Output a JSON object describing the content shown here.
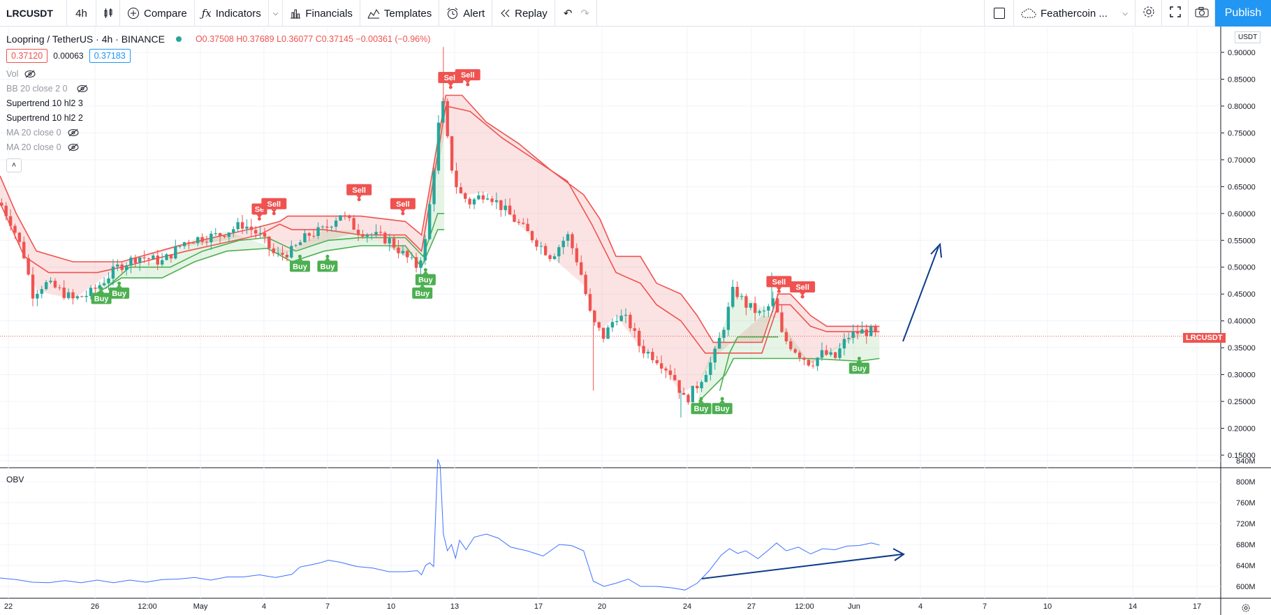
{
  "toolbar": {
    "symbol": "LRCUSDT",
    "interval": "4h",
    "compare": "Compare",
    "indicators": "Indicators",
    "financials": "Financials",
    "templates": "Templates",
    "alert": "Alert",
    "replay": "Replay",
    "layout_name": "Feathercoin ...",
    "publish": "Publish"
  },
  "legend": {
    "title": "Loopring / TetherUS · 4h · BINANCE",
    "open": "O0.37508",
    "high": "H0.37689",
    "low": "L0.36077",
    "close": "C0.37145",
    "change": "−0.00361 (−0.96%)",
    "bid": "0.37120",
    "spread": "0.00063",
    "ask": "0.37183",
    "indicators": [
      "Vol",
      "BB 20 close 2 0",
      "Supertrend 10 hl2 3",
      "Supertrend 10 hl2 2",
      "MA 20 close 0",
      "MA 20 close 0"
    ]
  },
  "colors": {
    "up": "#26a69a",
    "down": "#ef5350",
    "buy": "#4caf50",
    "sell": "#ef5350",
    "accent": "#2196f3",
    "annotation": "#0d3b8a"
  },
  "price_axis": {
    "currency": "USDT",
    "ticks": [
      "0.90000",
      "0.85000",
      "0.80000",
      "0.75000",
      "0.70000",
      "0.65000",
      "0.60000",
      "0.55000",
      "0.50000",
      "0.45000",
      "0.40000",
      "0.35000",
      "0.30000",
      "0.25000",
      "0.20000",
      "0.15000"
    ],
    "symbol_badge": "LRCUSDT"
  },
  "obv": {
    "label": "OBV",
    "ticks": [
      "840M",
      "800M",
      "760M",
      "720M",
      "680M",
      "640M",
      "600M"
    ]
  },
  "time_axis": {
    "ticks": [
      "22",
      "26",
      "12:00",
      "May",
      "4",
      "7",
      "10",
      "13",
      "17",
      "20",
      "24",
      "27",
      "12:00",
      "Jun",
      "4",
      "7",
      "10",
      "14",
      "17"
    ]
  },
  "signals": {
    "sell_label": "Sell",
    "sell_partial_label": "Se",
    "buy_label": "Buy"
  },
  "chart_data": {
    "type": "candlestick",
    "symbol": "LRCUSDT",
    "interval": "4h",
    "ylim": [
      0.13,
      0.92
    ],
    "supertrend_upper": [
      [
        0,
        0.67
      ],
      [
        20,
        0.6
      ],
      [
        45,
        0.53
      ],
      [
        90,
        0.51
      ],
      [
        150,
        0.51
      ],
      [
        220,
        0.54
      ],
      [
        320,
        0.575
      ],
      [
        345,
        0.585
      ],
      [
        355,
        0.595
      ],
      [
        445,
        0.595
      ],
      [
        500,
        0.585
      ],
      [
        520,
        0.56
      ],
      [
        550,
        0.82
      ],
      [
        570,
        0.82
      ],
      [
        600,
        0.77
      ],
      [
        640,
        0.73
      ],
      [
        680,
        0.68
      ],
      [
        720,
        0.635
      ],
      [
        740,
        0.59
      ],
      [
        760,
        0.52
      ],
      [
        790,
        0.52
      ],
      [
        810,
        0.47
      ],
      [
        840,
        0.45
      ],
      [
        860,
        0.41
      ],
      [
        880,
        0.36
      ],
      [
        940,
        0.36
      ],
      [
        960,
        0.45
      ],
      [
        975,
        0.45
      ],
      [
        1000,
        0.41
      ],
      [
        1020,
        0.39
      ],
      [
        1040,
        0.39
      ],
      [
        1070,
        0.39
      ],
      [
        1085,
        0.39
      ]
    ],
    "supertrend_upper2": [
      [
        0,
        0.62
      ],
      [
        30,
        0.52
      ],
      [
        60,
        0.49
      ],
      [
        120,
        0.49
      ],
      [
        150,
        0.5
      ],
      [
        230,
        0.53
      ],
      [
        320,
        0.56
      ],
      [
        345,
        0.58
      ],
      [
        360,
        0.57
      ],
      [
        400,
        0.57
      ],
      [
        445,
        0.56
      ],
      [
        500,
        0.56
      ],
      [
        520,
        0.53
      ],
      [
        550,
        0.8
      ],
      [
        580,
        0.79
      ],
      [
        620,
        0.74
      ],
      [
        660,
        0.7
      ],
      [
        700,
        0.66
      ],
      [
        730,
        0.58
      ],
      [
        760,
        0.49
      ],
      [
        790,
        0.47
      ],
      [
        810,
        0.43
      ],
      [
        840,
        0.4
      ],
      [
        870,
        0.34
      ],
      [
        940,
        0.34
      ],
      [
        960,
        0.43
      ],
      [
        975,
        0.43
      ],
      [
        1000,
        0.39
      ],
      [
        1020,
        0.38
      ],
      [
        1050,
        0.38
      ],
      [
        1085,
        0.38
      ]
    ],
    "supertrend_lower": [
      [
        118,
        0.45
      ],
      [
        150,
        0.48
      ],
      [
        200,
        0.48
      ],
      [
        240,
        0.51
      ],
      [
        280,
        0.53
      ],
      [
        330,
        0.535
      ],
      [
        360,
        0.51
      ],
      [
        400,
        0.53
      ],
      [
        445,
        0.54
      ],
      [
        500,
        0.54
      ],
      [
        520,
        0.5
      ],
      [
        540,
        0.57
      ],
      [
        548,
        0.57
      ],
      [
        862,
        0.25
      ],
      [
        895,
        0.3
      ],
      [
        905,
        0.33
      ],
      [
        960,
        0.33
      ],
      [
        1000,
        0.33
      ],
      [
        1060,
        0.325
      ],
      [
        1085,
        0.33
      ]
    ],
    "supertrend_lower2": [
      [
        130,
        0.46
      ],
      [
        160,
        0.5
      ],
      [
        210,
        0.5
      ],
      [
        250,
        0.53
      ],
      [
        295,
        0.55
      ],
      [
        330,
        0.555
      ],
      [
        365,
        0.53
      ],
      [
        405,
        0.55
      ],
      [
        445,
        0.555
      ],
      [
        500,
        0.555
      ],
      [
        522,
        0.52
      ],
      [
        540,
        0.6
      ],
      [
        548,
        0.6
      ],
      [
        888,
        0.27
      ],
      [
        900,
        0.34
      ],
      [
        910,
        0.37
      ],
      [
        960,
        0.37
      ]
    ],
    "price_path": [
      [
        0,
        0.62
      ],
      [
        15,
        0.58
      ],
      [
        30,
        0.52
      ],
      [
        40,
        0.45
      ],
      [
        55,
        0.47
      ],
      [
        70,
        0.46
      ],
      [
        90,
        0.44
      ],
      [
        110,
        0.45
      ],
      [
        125,
        0.47
      ],
      [
        145,
        0.5
      ],
      [
        170,
        0.52
      ],
      [
        200,
        0.51
      ],
      [
        230,
        0.55
      ],
      [
        270,
        0.56
      ],
      [
        300,
        0.58
      ],
      [
        320,
        0.56
      ],
      [
        340,
        0.52
      ],
      [
        360,
        0.53
      ],
      [
        380,
        0.56
      ],
      [
        400,
        0.57
      ],
      [
        420,
        0.6
      ],
      [
        440,
        0.57
      ],
      [
        460,
        0.56
      ],
      [
        480,
        0.55
      ],
      [
        500,
        0.52
      ],
      [
        515,
        0.5
      ],
      [
        525,
        0.55
      ],
      [
        535,
        0.68
      ],
      [
        545,
        0.82
      ],
      [
        555,
        0.7
      ],
      [
        565,
        0.64
      ],
      [
        580,
        0.62
      ],
      [
        600,
        0.64
      ],
      [
        620,
        0.61
      ],
      [
        640,
        0.58
      ],
      [
        660,
        0.55
      ],
      [
        680,
        0.52
      ],
      [
        700,
        0.56
      ],
      [
        715,
        0.5
      ],
      [
        730,
        0.4
      ],
      [
        745,
        0.37
      ],
      [
        760,
        0.41
      ],
      [
        775,
        0.4
      ],
      [
        790,
        0.35
      ],
      [
        810,
        0.33
      ],
      [
        830,
        0.3
      ],
      [
        845,
        0.25
      ],
      [
        860,
        0.28
      ],
      [
        880,
        0.33
      ],
      [
        895,
        0.4
      ],
      [
        905,
        0.46
      ],
      [
        920,
        0.43
      ],
      [
        940,
        0.41
      ],
      [
        955,
        0.44
      ],
      [
        965,
        0.37
      ],
      [
        985,
        0.34
      ],
      [
        1000,
        0.32
      ],
      [
        1015,
        0.34
      ],
      [
        1030,
        0.33
      ],
      [
        1045,
        0.37
      ],
      [
        1060,
        0.38
      ],
      [
        1075,
        0.38
      ],
      [
        1085,
        0.37
      ]
    ],
    "sell_signals": [
      [
        320,
        0.59
      ],
      [
        338,
        0.6
      ],
      [
        443,
        0.626
      ],
      [
        497,
        0.6
      ],
      [
        556,
        0.835
      ],
      [
        577,
        0.84
      ],
      [
        961,
        0.455
      ],
      [
        990,
        0.445
      ]
    ],
    "buy_signals": [
      [
        125,
        0.46
      ],
      [
        147,
        0.47
      ],
      [
        370,
        0.52
      ],
      [
        404,
        0.52
      ],
      [
        525,
        0.495
      ],
      [
        521,
        0.47
      ],
      [
        865,
        0.255
      ],
      [
        891,
        0.255
      ],
      [
        1060,
        0.33
      ]
    ],
    "last_price": 0.37145,
    "obv_ylim": [
      585,
      845
    ],
    "obv_values": [
      [
        0,
        616
      ],
      [
        20,
        613
      ],
      [
        40,
        608
      ],
      [
        60,
        607
      ],
      [
        80,
        611
      ],
      [
        100,
        607
      ],
      [
        120,
        612
      ],
      [
        140,
        607
      ],
      [
        160,
        612
      ],
      [
        180,
        608
      ],
      [
        200,
        613
      ],
      [
        220,
        614
      ],
      [
        240,
        617
      ],
      [
        260,
        612
      ],
      [
        280,
        618
      ],
      [
        300,
        618
      ],
      [
        320,
        622
      ],
      [
        340,
        617
      ],
      [
        360,
        623
      ],
      [
        370,
        637
      ],
      [
        380,
        640
      ],
      [
        395,
        645
      ],
      [
        405,
        650
      ],
      [
        420,
        646
      ],
      [
        440,
        638
      ],
      [
        460,
        635
      ],
      [
        480,
        628
      ],
      [
        500,
        628
      ],
      [
        515,
        630
      ],
      [
        520,
        622
      ],
      [
        525,
        640
      ],
      [
        530,
        645
      ],
      [
        535,
        638
      ],
      [
        540,
        843
      ],
      [
        543,
        830
      ],
      [
        547,
        700
      ],
      [
        552,
        668
      ],
      [
        557,
        680
      ],
      [
        562,
        654
      ],
      [
        567,
        688
      ],
      [
        575,
        670
      ],
      [
        585,
        694
      ],
      [
        600,
        700
      ],
      [
        615,
        692
      ],
      [
        630,
        675
      ],
      [
        650,
        668
      ],
      [
        670,
        658
      ],
      [
        690,
        680
      ],
      [
        705,
        678
      ],
      [
        720,
        668
      ],
      [
        732,
        610
      ],
      [
        745,
        600
      ],
      [
        760,
        606
      ],
      [
        775,
        614
      ],
      [
        790,
        600
      ],
      [
        810,
        600
      ],
      [
        830,
        597
      ],
      [
        845,
        593
      ],
      [
        860,
        606
      ],
      [
        875,
        630
      ],
      [
        890,
        660
      ],
      [
        900,
        672
      ],
      [
        910,
        663
      ],
      [
        920,
        668
      ],
      [
        935,
        653
      ],
      [
        950,
        672
      ],
      [
        958,
        683
      ],
      [
        970,
        668
      ],
      [
        985,
        675
      ],
      [
        1000,
        662
      ],
      [
        1015,
        672
      ],
      [
        1030,
        670
      ],
      [
        1045,
        677
      ],
      [
        1060,
        678
      ],
      [
        1075,
        683
      ],
      [
        1085,
        679
      ]
    ]
  }
}
